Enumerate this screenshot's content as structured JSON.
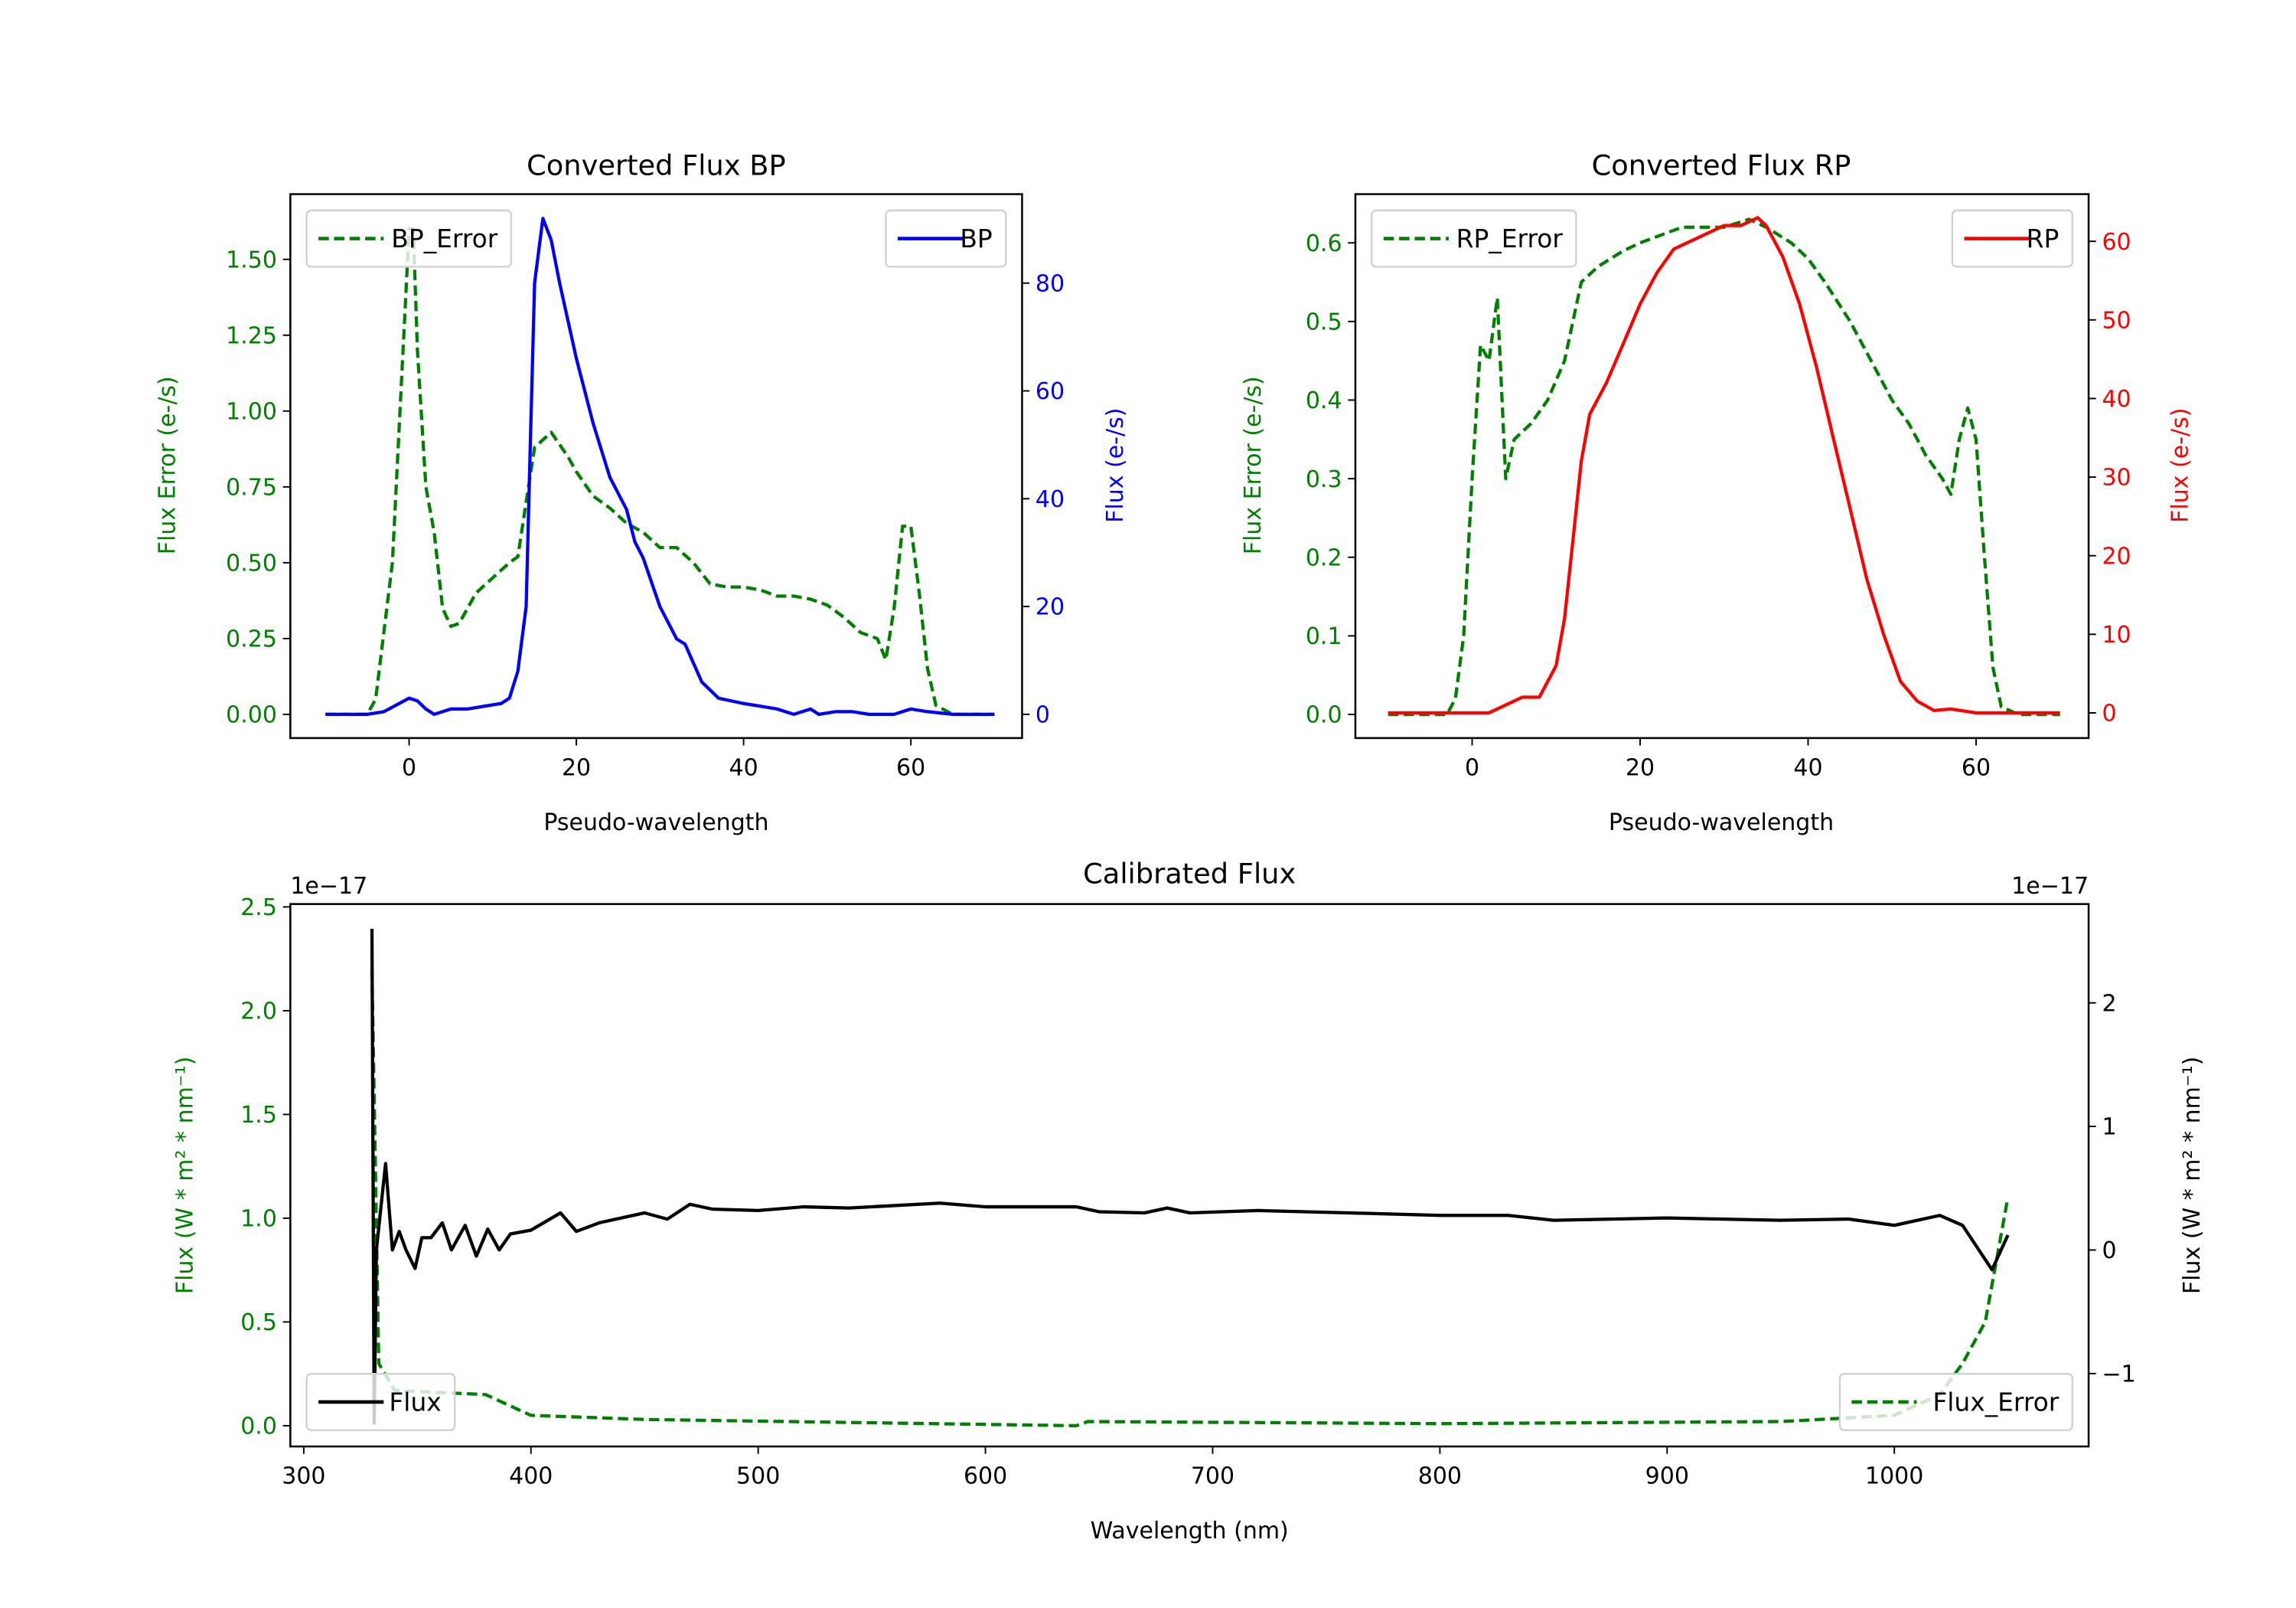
{
  "chart_data": [
    {
      "id": "bp",
      "type": "line",
      "title": "Converted Flux BP",
      "xlabel": "Pseudo-wavelength",
      "ylabel_left": "Flux Error (e-/s)",
      "ylabel_right": "Flux (e-/s)",
      "xlim": [
        -14.2,
        73.3
      ],
      "ylim_left": [
        -0.078,
        1.715
      ],
      "ylim_right": [
        -4.4,
        96.5
      ],
      "xticks": [
        0,
        20,
        40,
        60
      ],
      "xtick_labels": [
        "0",
        "20",
        "40",
        "60"
      ],
      "yticks_left": [
        0,
        0.25,
        0.5,
        0.75,
        1.0,
        1.25,
        1.5
      ],
      "ytick_labels_left": [
        "0.00",
        "0.25",
        "0.50",
        "0.75",
        "1.00",
        "1.25",
        "1.50"
      ],
      "yticks_right": [
        0,
        20,
        40,
        60,
        80
      ],
      "ytick_labels_right": [
        "0",
        "20",
        "40",
        "60",
        "80"
      ],
      "left_color": "#008000",
      "right_color": "#0000ff",
      "grid": false,
      "series": [
        {
          "name": "BP_Error",
          "axis": "left",
          "color": "#008000",
          "style": "dashed",
          "legend": "top-left",
          "x": [
            -10,
            -5,
            -4,
            -2,
            0,
            0.5,
            1,
            2,
            3,
            4,
            5,
            6,
            8,
            10,
            12,
            13,
            14,
            15,
            17,
            19,
            20,
            22,
            24,
            26,
            28,
            30,
            32,
            34,
            36,
            38,
            40,
            42,
            44,
            46,
            48,
            50,
            52,
            54,
            56,
            57,
            58,
            59,
            60,
            61,
            62,
            63,
            65,
            70
          ],
          "y": [
            0,
            0,
            0.05,
            0.5,
            1.6,
            1.6,
            1.2,
            0.75,
            0.6,
            0.35,
            0.29,
            0.3,
            0.4,
            0.45,
            0.5,
            0.52,
            0.7,
            0.88,
            0.93,
            0.85,
            0.8,
            0.72,
            0.68,
            0.63,
            0.6,
            0.55,
            0.55,
            0.5,
            0.43,
            0.42,
            0.42,
            0.41,
            0.39,
            0.39,
            0.38,
            0.36,
            0.32,
            0.27,
            0.25,
            0.18,
            0.35,
            0.62,
            0.62,
            0.4,
            0.15,
            0.03,
            0,
            0
          ]
        },
        {
          "name": "BP",
          "axis": "right",
          "color": "#0000ff",
          "style": "solid",
          "legend": "top-right",
          "x": [
            -10,
            -5,
            -3,
            0,
            1,
            2,
            3,
            5,
            7,
            9,
            11,
            12,
            13,
            14,
            14.5,
            15,
            16,
            17,
            18,
            20,
            22,
            24,
            26,
            27,
            28,
            30,
            32,
            33,
            35,
            37,
            40,
            42,
            44,
            46,
            48,
            49,
            51,
            53,
            55,
            58,
            60,
            62,
            65,
            70
          ],
          "y": [
            0,
            0,
            0.5,
            3,
            2.5,
            1,
            0,
            1,
            1,
            1.5,
            2,
            3,
            8,
            20,
            50,
            80,
            92,
            88,
            80,
            66,
            54,
            44,
            38,
            32,
            29,
            20,
            14,
            13,
            6,
            3,
            2,
            1.5,
            1,
            0,
            1,
            0,
            0.5,
            0.5,
            0,
            0,
            1,
            0.5,
            0,
            0
          ]
        }
      ]
    },
    {
      "id": "rp",
      "type": "line",
      "title": "Converted Flux RP",
      "xlabel": "Pseudo-wavelength",
      "ylabel_left": "Flux Error (e-/s)",
      "ylabel_right": "Flux (e-/s)",
      "xlim": [
        -13.9,
        73.4
      ],
      "ylim_left": [
        -0.03,
        0.662
      ],
      "ylim_right": [
        -3.2,
        66.0
      ],
      "xticks": [
        0,
        20,
        40,
        60
      ],
      "xtick_labels": [
        "0",
        "20",
        "40",
        "60"
      ],
      "yticks_left": [
        0,
        0.1,
        0.2,
        0.3,
        0.4,
        0.5,
        0.6
      ],
      "ytick_labels_left": [
        "0.0",
        "0.1",
        "0.2",
        "0.3",
        "0.4",
        "0.5",
        "0.6"
      ],
      "yticks_right": [
        0,
        10,
        20,
        30,
        40,
        50,
        60
      ],
      "ytick_labels_right": [
        "0",
        "10",
        "20",
        "30",
        "40",
        "50",
        "60"
      ],
      "left_color": "#008000",
      "right_color": "#ff0000",
      "grid": false,
      "series": [
        {
          "name": "RP_Error",
          "axis": "left",
          "color": "#008000",
          "style": "dashed",
          "legend": "top-left",
          "x": [
            -10,
            -3,
            -2,
            -1,
            0,
            1,
            2,
            3,
            4,
            5,
            7,
            9,
            11,
            13,
            15,
            18,
            20,
            25,
            30,
            33,
            35,
            38,
            40,
            42,
            45,
            48,
            50,
            52,
            54,
            56,
            57,
            58,
            59,
            60,
            61,
            62,
            63,
            65,
            70
          ],
          "y": [
            0,
            0,
            0.02,
            0.1,
            0.3,
            0.47,
            0.45,
            0.53,
            0.3,
            0.35,
            0.37,
            0.4,
            0.45,
            0.55,
            0.57,
            0.59,
            0.6,
            0.62,
            0.62,
            0.63,
            0.62,
            0.6,
            0.58,
            0.55,
            0.5,
            0.44,
            0.4,
            0.37,
            0.33,
            0.3,
            0.28,
            0.35,
            0.39,
            0.35,
            0.2,
            0.06,
            0.01,
            0,
            0
          ]
        },
        {
          "name": "RP",
          "axis": "right",
          "color": "#ff0000",
          "style": "solid",
          "legend": "top-right",
          "x": [
            -10,
            -2,
            2,
            4,
            6,
            8,
            10,
            11,
            12,
            13,
            14,
            16,
            18,
            20,
            22,
            24,
            26,
            28,
            30,
            32,
            34,
            35,
            37,
            39,
            41,
            43,
            45,
            47,
            49,
            51,
            53,
            55,
            57,
            60,
            70
          ],
          "y": [
            0,
            0,
            0,
            1,
            2,
            2,
            6,
            12,
            22,
            32,
            38,
            42,
            47,
            52,
            56,
            59,
            60,
            61,
            62,
            62,
            63,
            62,
            58,
            52,
            44,
            35,
            26,
            17,
            10,
            4,
            1.5,
            0.3,
            0.5,
            0,
            0
          ]
        }
      ]
    },
    {
      "id": "cal",
      "type": "line",
      "title": "Calibrated Flux",
      "xlabel": "Wavelength (nm)",
      "ylabel_left": "Flux (W * m² * nm⁻¹)",
      "ylabel_right": "Flux (W * m² * nm⁻¹)",
      "offset_left": "1e−17",
      "offset_right": "1e−17",
      "xlim": [
        294.1,
        1085.5
      ],
      "ylim_left": [
        -0.1,
        2.514
      ],
      "ylim_right": [
        -1.59,
        2.8
      ],
      "xticks": [
        300,
        400,
        500,
        600,
        700,
        800,
        900,
        1000
      ],
      "xtick_labels": [
        "300",
        "400",
        "500",
        "600",
        "700",
        "800",
        "900",
        "1000"
      ],
      "yticks_left": [
        0,
        0.5,
        1.0,
        1.5,
        2.0,
        2.5
      ],
      "ytick_labels_left": [
        "0.0",
        "0.5",
        "1.0",
        "1.5",
        "2.0",
        "2.5"
      ],
      "yticks_right": [
        -1,
        0,
        1,
        2
      ],
      "ytick_labels_right": [
        "−1",
        "0",
        "1",
        "2"
      ],
      "left_color": "#008000",
      "right_color": "#000000",
      "grid": false,
      "series": [
        {
          "name": "Flux_Error",
          "axis": "left",
          "color": "#008000",
          "style": "dashed",
          "legend": "lower-right",
          "x": [
            330,
            333,
            340,
            380,
            400,
            450,
            640,
            645,
            800,
            950,
            1000,
            1020,
            1030,
            1040,
            1050
          ],
          "y": [
            2.2,
            0.3,
            0.17,
            0.15,
            0.05,
            0.03,
            0.0,
            0.02,
            0.01,
            0.02,
            0.05,
            0.15,
            0.3,
            0.5,
            1.1
          ]
        },
        {
          "name": "Flux",
          "axis": "right",
          "color": "#000000",
          "style": "solid",
          "legend": "lower-left",
          "x": [
            330,
            331,
            332,
            336,
            339,
            342,
            345,
            349,
            352,
            356,
            361,
            365,
            371,
            376,
            381,
            386,
            391,
            400,
            413,
            420,
            430,
            450,
            460,
            470,
            480,
            500,
            520,
            540,
            580,
            600,
            640,
            650,
            670,
            680,
            690,
            720,
            760,
            800,
            830,
            850,
            900,
            950,
            980,
            1000,
            1020,
            1030,
            1043,
            1050
          ],
          "y": [
            2.6,
            -1.4,
            0,
            0.7,
            0,
            0.15,
            0,
            -0.15,
            0.1,
            0.1,
            0.22,
            0.0,
            0.2,
            -0.05,
            0.17,
            0,
            0.13,
            0.16,
            0.3,
            0.15,
            0.22,
            0.3,
            0.25,
            0.37,
            0.33,
            0.32,
            0.35,
            0.34,
            0.38,
            0.35,
            0.35,
            0.31,
            0.3,
            0.34,
            0.3,
            0.32,
            0.3,
            0.28,
            0.28,
            0.24,
            0.26,
            0.24,
            0.25,
            0.2,
            0.28,
            0.2,
            -0.16,
            0.12
          ]
        }
      ]
    }
  ]
}
